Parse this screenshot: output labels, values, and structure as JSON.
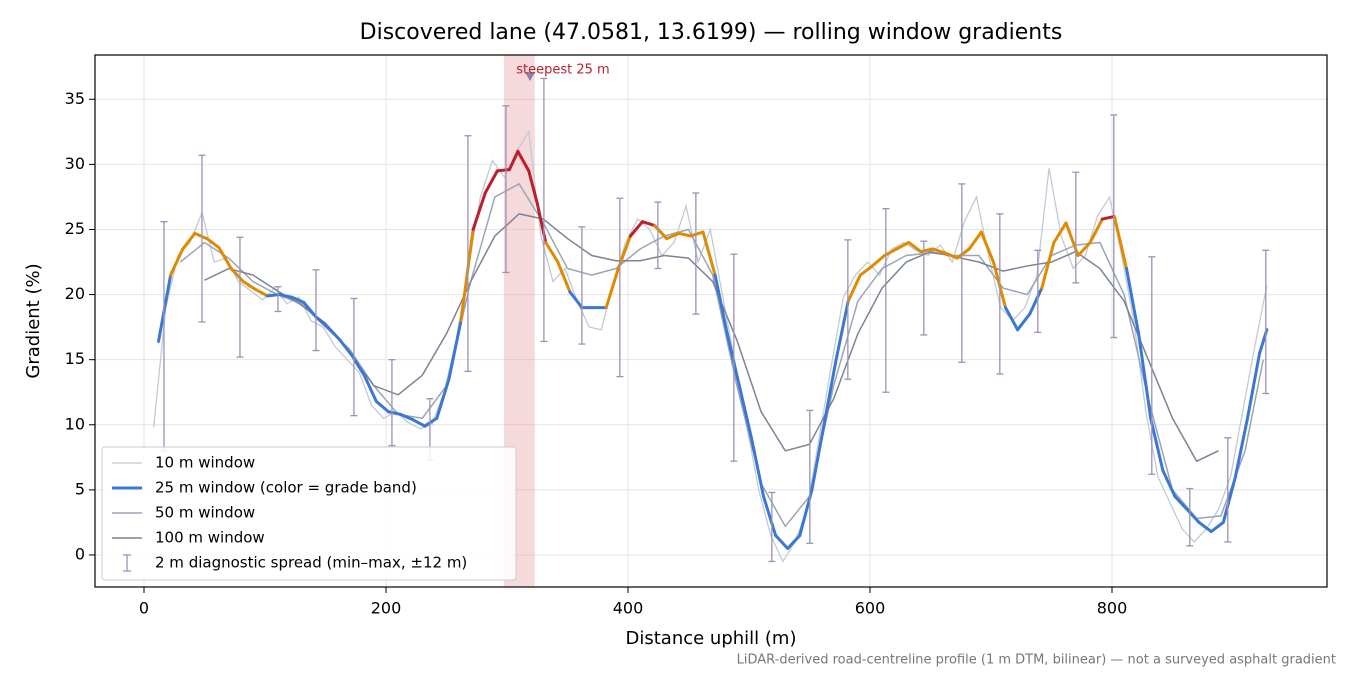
{
  "chart_data": {
    "type": "line",
    "title": "Discovered lane (47.0581, 13.6199) — rolling window gradients",
    "xlabel": "Distance uphill (m)",
    "ylabel": "Gradient (%)",
    "footnote": "LiDAR-derived road-centreline profile (1 m DTM, bilinear) — not a surveyed asphalt gradient",
    "xlim": [
      -40.5,
      977.7
    ],
    "ylim": [
      -2.46,
      38.4
    ],
    "xticks": [
      0,
      200,
      400,
      600,
      800
    ],
    "yticks": [
      0,
      5,
      10,
      15,
      20,
      25,
      30,
      35
    ],
    "grid": true,
    "legend": "lower left",
    "grade_bands": [
      {
        "below": 20,
        "color": "#3a78d4"
      },
      {
        "below": 25,
        "color": "#e08a00"
      },
      {
        "color": "#bd1e2d"
      }
    ],
    "series": [
      {
        "name": "10 m window",
        "color": "#c2cad6",
        "width": 1.3,
        "x": [
          8,
          18,
          28,
          38,
          48,
          58,
          68,
          78,
          88,
          98,
          108,
          118,
          128,
          138,
          148,
          158,
          168,
          178,
          188,
          198,
          208,
          218,
          228,
          238,
          248,
          258,
          268,
          278,
          288,
          298,
          308,
          318,
          328,
          338,
          348,
          358,
          368,
          378,
          388,
          398,
          408,
          418,
          428,
          438,
          448,
          458,
          468,
          478,
          488,
          498,
          508,
          518,
          528,
          538,
          548,
          558,
          568,
          578,
          588,
          598,
          608,
          618,
          628,
          638,
          648,
          658,
          668,
          678,
          688,
          698,
          708,
          718,
          728,
          738,
          748,
          758,
          768,
          778,
          788,
          798,
          808,
          818,
          828,
          838,
          848,
          858,
          868,
          878,
          888,
          898,
          908,
          918,
          928
        ],
        "values": [
          9.8,
          19,
          23,
          24,
          26.3,
          22.5,
          22.8,
          21,
          20.3,
          19.6,
          20.5,
          19.3,
          19.8,
          18,
          17.5,
          16,
          15,
          14,
          11.5,
          10.5,
          11,
          10.2,
          9.7,
          10,
          12.5,
          16.5,
          22,
          27.5,
          30.3,
          29,
          31,
          32.5,
          24.5,
          21,
          22,
          19.5,
          17.5,
          17.3,
          21,
          24,
          25.8,
          25,
          23,
          24,
          26.8,
          22.5,
          25,
          20,
          15,
          10,
          5,
          1.5,
          -0.5,
          1,
          3.5,
          9,
          14.5,
          19.8,
          21.5,
          22.5,
          21.5,
          23.5,
          24,
          23.4,
          23,
          23.8,
          22.5,
          25.6,
          27.5,
          23,
          19,
          18,
          19,
          21.5,
          29.7,
          24.5,
          22,
          23,
          26,
          27.5,
          23,
          18,
          11,
          6,
          4,
          2,
          1,
          2,
          3.5,
          6,
          11,
          16,
          20.7
        ]
      },
      {
        "name": "25 m window (color = grade band)",
        "color": "#3a78d4",
        "width": 3,
        "banded": true,
        "x": [
          12,
          22,
          32,
          42,
          52,
          62,
          72,
          82,
          92,
          102,
          112,
          122,
          132,
          142,
          152,
          162,
          172,
          182,
          192,
          202,
          212,
          222,
          232,
          242,
          252,
          262,
          272,
          282,
          292,
          302,
          309,
          318,
          325,
          332,
          342,
          352,
          362,
          372,
          382,
          392,
          402,
          412,
          422,
          432,
          442,
          452,
          462,
          472,
          482,
          492,
          502,
          512,
          522,
          532,
          542,
          552,
          562,
          572,
          582,
          592,
          602,
          612,
          622,
          632,
          642,
          652,
          662,
          672,
          682,
          692,
          702,
          712,
          722,
          732,
          742,
          752,
          762,
          772,
          782,
          792,
          802,
          812,
          822,
          832,
          842,
          852,
          862,
          872,
          882,
          892,
          902,
          912,
          922,
          928
        ],
        "values": [
          16.4,
          21.5,
          23.5,
          24.7,
          24.3,
          23.6,
          22,
          21,
          20.4,
          19.9,
          20,
          19.8,
          19.4,
          18.3,
          17.5,
          16.5,
          15.3,
          13.8,
          11.8,
          11,
          10.8,
          10.4,
          9.9,
          10.5,
          13.5,
          18,
          25,
          27.8,
          29.5,
          29.6,
          31,
          29.5,
          27,
          24,
          22.5,
          20.2,
          19,
          19,
          19,
          22,
          24.5,
          25.6,
          25.3,
          24.3,
          24.7,
          24.5,
          24.8,
          21.5,
          17,
          13,
          9,
          4.5,
          1.5,
          0.5,
          1.5,
          5,
          10,
          15,
          19.5,
          21.5,
          22.2,
          23,
          23.5,
          24,
          23.3,
          23.5,
          23.2,
          22.8,
          23.5,
          24.8,
          22.5,
          19,
          17.3,
          18.5,
          20.5,
          24,
          25.5,
          23,
          24,
          25.8,
          26,
          22,
          17,
          10.5,
          6.5,
          4.5,
          3.5,
          2.5,
          1.8,
          2.5,
          6,
          10.5,
          15.5,
          17.3
        ]
      },
      {
        "name": "50 m window",
        "color": "#9aa5b6",
        "width": 1.5,
        "x": [
          30,
          50,
          70,
          90,
          110,
          130,
          150,
          170,
          190,
          210,
          230,
          250,
          270,
          290,
          310,
          330,
          350,
          370,
          390,
          410,
          430,
          450,
          470,
          490,
          510,
          530,
          550,
          570,
          590,
          610,
          630,
          650,
          670,
          690,
          710,
          730,
          750,
          770,
          790,
          810,
          830,
          850,
          870,
          890,
          910,
          925
        ],
        "values": [
          22.5,
          24,
          22.8,
          21,
          20,
          19.3,
          17.5,
          15.8,
          13,
          10.8,
          10.5,
          13,
          21,
          27.5,
          28.5,
          25.5,
          22,
          21.5,
          22,
          23.5,
          24.5,
          25,
          21.5,
          13,
          5.5,
          2.2,
          4.5,
          13,
          19.5,
          22,
          23,
          23.2,
          23,
          23,
          20.5,
          20,
          23,
          23.8,
          24,
          20,
          12,
          5,
          2.8,
          3,
          8,
          15
        ]
      },
      {
        "name": "100 m window",
        "color": "#7b8394",
        "width": 1.5,
        "x": [
          50,
          70,
          90,
          110,
          130,
          150,
          170,
          190,
          210,
          230,
          250,
          270,
          290,
          310,
          330,
          350,
          370,
          390,
          410,
          430,
          450,
          470,
          490,
          510,
          530,
          550,
          570,
          590,
          610,
          630,
          650,
          670,
          690,
          710,
          730,
          750,
          770,
          790,
          810,
          830,
          850,
          870,
          888
        ],
        "values": [
          21.1,
          22,
          21.5,
          20.3,
          19.2,
          17.8,
          15.5,
          13,
          12.3,
          13.8,
          17,
          21,
          24.5,
          26.2,
          25.8,
          24.3,
          23,
          22.6,
          22.6,
          23,
          22.8,
          21,
          16.5,
          11,
          8,
          8.5,
          12,
          17,
          20.5,
          22.5,
          23.3,
          22.9,
          22.5,
          21.8,
          22.2,
          22.5,
          23.3,
          22,
          19.5,
          15,
          10.5,
          7.2,
          8
        ]
      }
    ],
    "errorbars": {
      "name": "2 m diagnostic spread (min–max, ±12 m)",
      "color": "#9a92b8",
      "x": [
        16.5,
        47.9,
        79.3,
        110.7,
        142.1,
        173.5,
        204.9,
        236.3,
        267.7,
        299.1,
        330.5,
        361.9,
        393.3,
        424.7,
        456.1,
        487.5,
        518.9,
        550.3,
        581.7,
        613.1,
        644.5,
        675.9,
        707.3,
        738.7,
        770.1,
        801.5,
        832.9,
        864.3,
        895.7,
        927.1
      ],
      "low": [
        8,
        17.9,
        15.2,
        18.7,
        15.7,
        10.7,
        8.4,
        7.3,
        14.1,
        21.7,
        16.4,
        16.2,
        13.7,
        22,
        18.5,
        7.2,
        -0.5,
        0.9,
        13.5,
        12.5,
        16.9,
        14.8,
        13.9,
        17.1,
        20.9,
        16.7,
        6.2,
        0.7,
        1,
        12.4
      ],
      "high": [
        25.6,
        30.7,
        24.4,
        20.6,
        21.9,
        19.7,
        15,
        12,
        32.2,
        34.5,
        36.6,
        25.2,
        27.4,
        27.1,
        27.8,
        23.1,
        4.8,
        11.1,
        24.2,
        26.6,
        24.1,
        28.5,
        26.2,
        23.4,
        29.4,
        33.8,
        22.9,
        5.1,
        9,
        23.4
      ]
    },
    "highlight": {
      "x0": 297.5,
      "x1": 323,
      "color": "#e8a0a6",
      "label": "steepest 25 m",
      "label_color": "#bd1e2d",
      "marker_x": 319,
      "marker_y": 36.7
    }
  }
}
